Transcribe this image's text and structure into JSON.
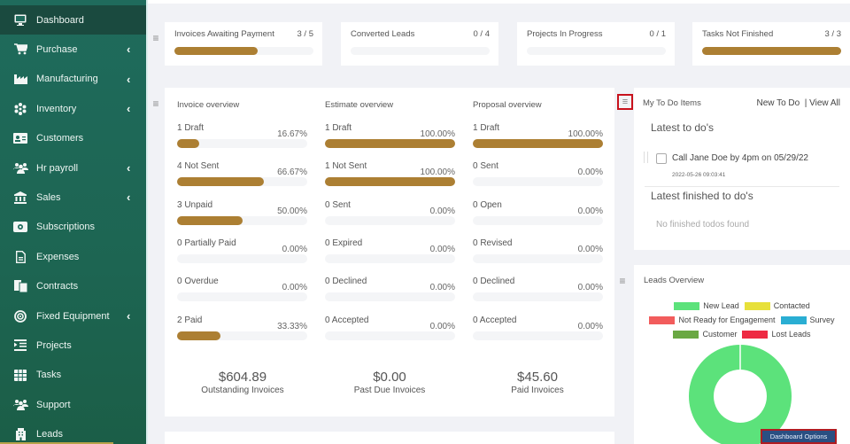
{
  "sidebar": {
    "items": [
      {
        "label": "Dashboard",
        "icon": "monitor-icon",
        "active": true,
        "has_submenu": false
      },
      {
        "label": "Purchase",
        "icon": "cart-icon",
        "has_submenu": true
      },
      {
        "label": "Manufacturing",
        "icon": "industry-icon",
        "has_submenu": true
      },
      {
        "label": "Inventory",
        "icon": "snowflake-icon",
        "has_submenu": true
      },
      {
        "label": "Customers",
        "icon": "id-card-icon",
        "has_submenu": false
      },
      {
        "label": "Hr payroll",
        "icon": "users-icon",
        "has_submenu": true
      },
      {
        "label": "Sales",
        "icon": "bank-icon",
        "has_submenu": true
      },
      {
        "label": "Subscriptions",
        "icon": "money-bill-icon",
        "has_submenu": false
      },
      {
        "label": "Expenses",
        "icon": "file-invoice-icon",
        "has_submenu": false
      },
      {
        "label": "Contracts",
        "icon": "copy-icon",
        "has_submenu": false
      },
      {
        "label": "Fixed Equipment",
        "icon": "bullseye-icon",
        "has_submenu": true
      },
      {
        "label": "Projects",
        "icon": "indent-icon",
        "has_submenu": false
      },
      {
        "label": "Tasks",
        "icon": "grid-icon",
        "has_submenu": false
      },
      {
        "label": "Support",
        "icon": "users-icon",
        "has_submenu": false
      },
      {
        "label": "Leads",
        "icon": "building-icon",
        "has_submenu": false
      }
    ],
    "chevron": "‹"
  },
  "stats": [
    {
      "title": "Invoices Awaiting Payment",
      "count": "3 / 5",
      "progress": 0.6
    },
    {
      "title": "Converted Leads",
      "count": "0 / 4",
      "progress": 0
    },
    {
      "title": "Projects In Progress",
      "count": "0 / 1",
      "progress": 0
    },
    {
      "title": "Tasks Not Finished",
      "count": "3 / 3",
      "progress": 1.0
    }
  ],
  "overview": {
    "columns": [
      {
        "title": "Invoice overview",
        "rows": [
          {
            "label": "1 Draft",
            "pct": "16.67%",
            "value": 16.67
          },
          {
            "label": "4 Not Sent",
            "pct": "66.67%",
            "value": 66.67
          },
          {
            "label": "3 Unpaid",
            "pct": "50.00%",
            "value": 50.0
          },
          {
            "label": "0 Partially Paid",
            "pct": "0.00%",
            "value": 0
          },
          {
            "label": "0 Overdue",
            "pct": "0.00%",
            "value": 0
          },
          {
            "label": "2 Paid",
            "pct": "33.33%",
            "value": 33.33
          }
        ]
      },
      {
        "title": "Estimate overview",
        "rows": [
          {
            "label": "1 Draft",
            "pct": "100.00%",
            "value": 100
          },
          {
            "label": "1 Not Sent",
            "pct": "100.00%",
            "value": 100
          },
          {
            "label": "0 Sent",
            "pct": "0.00%",
            "value": 0
          },
          {
            "label": "0 Expired",
            "pct": "0.00%",
            "value": 0
          },
          {
            "label": "0 Declined",
            "pct": "0.00%",
            "value": 0
          },
          {
            "label": "0 Accepted",
            "pct": "0.00%",
            "value": 0
          }
        ]
      },
      {
        "title": "Proposal overview",
        "rows": [
          {
            "label": "1 Draft",
            "pct": "100.00%",
            "value": 100
          },
          {
            "label": "0 Sent",
            "pct": "0.00%",
            "value": 0
          },
          {
            "label": "0 Open",
            "pct": "0.00%",
            "value": 0
          },
          {
            "label": "0 Revised",
            "pct": "0.00%",
            "value": 0
          },
          {
            "label": "0 Declined",
            "pct": "0.00%",
            "value": 0
          },
          {
            "label": "0 Accepted",
            "pct": "0.00%",
            "value": 0
          }
        ]
      }
    ],
    "totals": [
      {
        "amount": "$604.89",
        "caption": "Outstanding Invoices"
      },
      {
        "amount": "$0.00",
        "caption": "Past Due Invoices"
      },
      {
        "amount": "$45.60",
        "caption": "Paid Invoices"
      }
    ]
  },
  "todo": {
    "title": "My To Do Items",
    "new_link": "New To Do",
    "view_all_link": "| View All",
    "latest_heading": "Latest to do's",
    "item_text": "Call Jane Doe by 4pm on 05/29/22",
    "item_date": "2022-05-26 09:03:41",
    "finished_heading": "Latest finished to do's",
    "empty_text": "No finished todos found"
  },
  "leads": {
    "title": "Leads Overview",
    "legend": [
      {
        "label": "New Lead",
        "color": "#5ce27b"
      },
      {
        "label": "Contacted",
        "color": "#e7e03a"
      },
      {
        "label": "Not Ready for Engagement",
        "color": "#f25c5c"
      },
      {
        "label": "Survey",
        "color": "#2aaed3"
      },
      {
        "label": "Customer",
        "color": "#6aa843"
      },
      {
        "label": "Lost Leads",
        "color": "#ee2a43"
      }
    ]
  },
  "chart_data": {
    "type": "pie",
    "title": "Leads Overview",
    "categories": [
      "New Lead",
      "Contacted",
      "Not Ready for Engagement",
      "Survey",
      "Customer",
      "Lost Leads"
    ],
    "values": [
      100,
      0,
      0,
      0,
      0,
      0
    ],
    "legend_position": "top"
  },
  "dashboard_options_label": "Dashboard Options",
  "colors": {
    "accent_bar": "#ac7f33",
    "sidebar": "#1f6b5c",
    "sidebar_active": "#1a4a3f"
  }
}
